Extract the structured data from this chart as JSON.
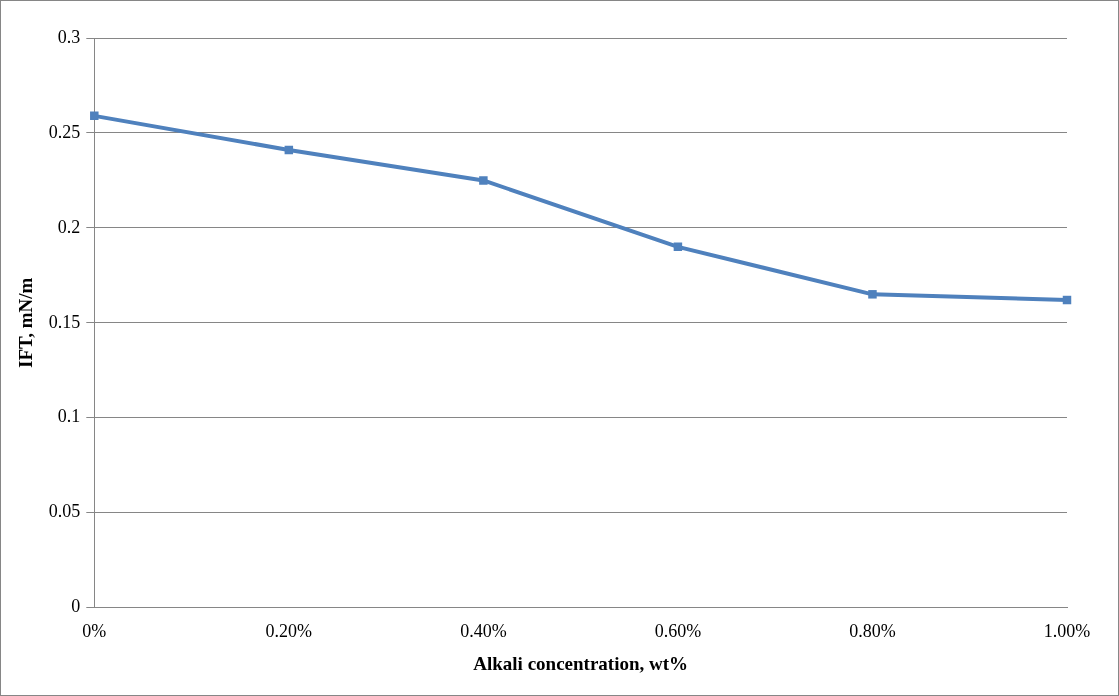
{
  "chart_data": {
    "type": "line",
    "xlabel": "Alkali concentration, wt%",
    "ylabel": "IFT, mN/m",
    "categories": [
      "0%",
      "0.20%",
      "0.40%",
      "0.60%",
      "0.80%",
      "1.00%"
    ],
    "series": [
      {
        "color": "#4f81bd",
        "values": [
          0.259,
          0.241,
          0.225,
          0.19,
          0.165,
          0.162
        ]
      }
    ],
    "ylim": [
      0,
      0.3
    ],
    "yticks": [
      0,
      0.05,
      0.1,
      0.15,
      0.2,
      0.25,
      0.3
    ],
    "grid": "y",
    "legend": false,
    "marker": "square",
    "line_style": "solid"
  }
}
